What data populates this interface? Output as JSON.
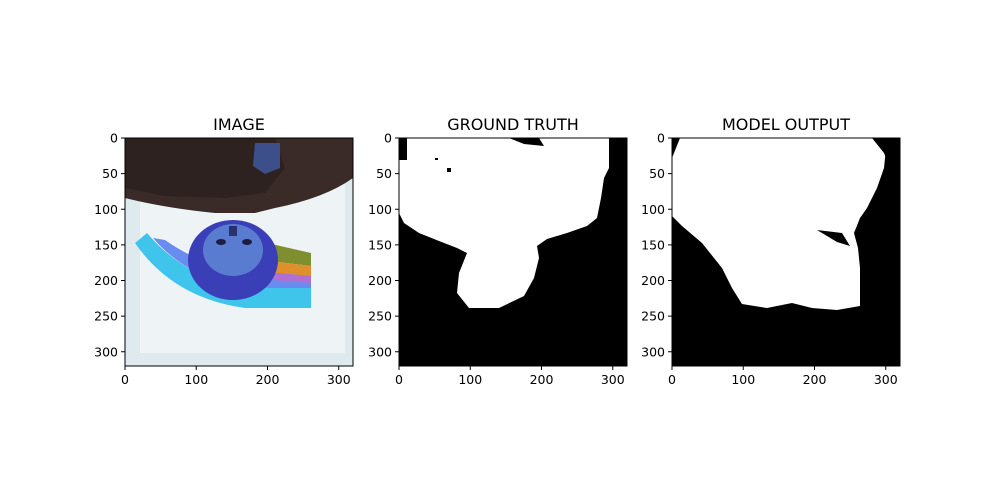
{
  "figure": {
    "background": "#ffffff",
    "axis_color": "#000000"
  },
  "chart_data": [
    {
      "type": "image",
      "title": "IMAGE",
      "xlim": [
        0,
        320
      ],
      "ylim": [
        320,
        0
      ],
      "xticks": [
        0,
        100,
        200,
        300
      ],
      "yticks": [
        0,
        50,
        100,
        150,
        200,
        250,
        300
      ],
      "content": "photograph (upside-down person in dark jacket with blue headscarf, lying on white sheet with rainbow stripes)"
    },
    {
      "type": "image",
      "title": "GROUND TRUTH",
      "xlim": [
        0,
        320
      ],
      "ylim": [
        320,
        0
      ],
      "xticks": [
        0,
        100,
        200,
        300
      ],
      "yticks": [
        0,
        50,
        100,
        150,
        200,
        250,
        300
      ],
      "content": "binary mask, white foreground on black background"
    },
    {
      "type": "image",
      "title": "MODEL OUTPUT",
      "xlim": [
        0,
        320
      ],
      "ylim": [
        320,
        0
      ],
      "xticks": [
        0,
        100,
        200,
        300
      ],
      "yticks": [
        0,
        50,
        100,
        150,
        200,
        250,
        300
      ],
      "content": "binary mask, white foreground on black background"
    }
  ]
}
